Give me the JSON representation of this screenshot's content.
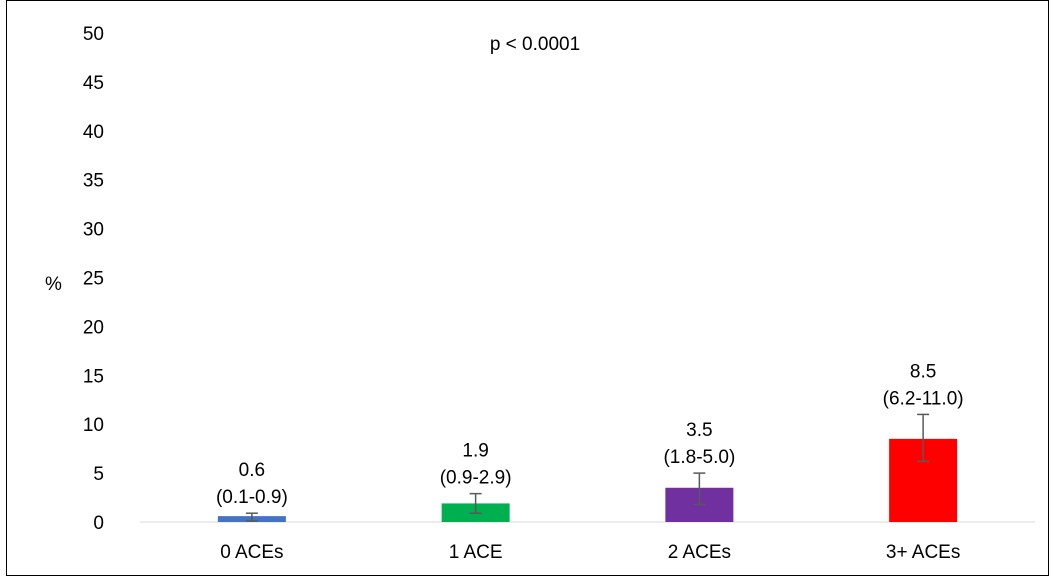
{
  "chart_data": {
    "type": "bar",
    "ylabel": "%",
    "annotation": "p < 0.0001",
    "ylim": [
      0,
      50
    ],
    "yticks": [
      0,
      5,
      10,
      15,
      20,
      25,
      30,
      35,
      40,
      45,
      50
    ],
    "categories": [
      "0 ACEs",
      "1 ACE",
      "2 ACEs",
      "3+ ACEs"
    ],
    "values": [
      0.6,
      1.9,
      3.5,
      8.5
    ],
    "ci_low": [
      0.1,
      0.9,
      1.8,
      6.2
    ],
    "ci_high": [
      0.9,
      2.9,
      5.0,
      11.0
    ],
    "value_labels": [
      "0.6",
      "1.9",
      "3.5",
      "8.5"
    ],
    "ci_labels": [
      "(0.1-0.9)",
      "(0.9-2.9)",
      "(1.8-5.0)",
      "(6.2-11.0)"
    ],
    "colors": [
      "#4472C4",
      "#00B050",
      "#7030A0",
      "#FF0000"
    ],
    "grid": false
  }
}
